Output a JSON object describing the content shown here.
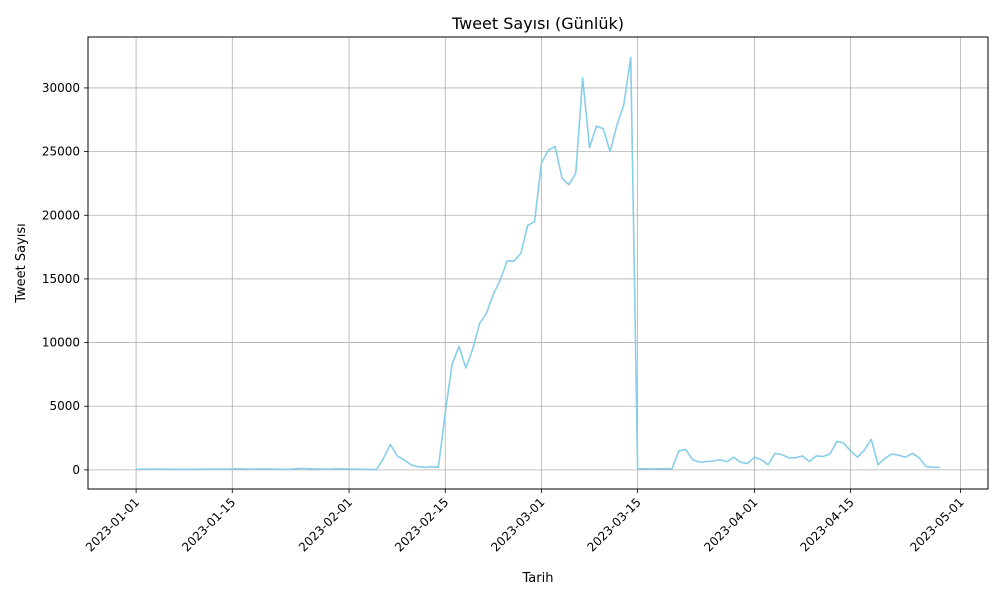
{
  "chart_data": {
    "type": "line",
    "title": "Tweet Sayısı (Günlük)",
    "xlabel": "Tarih",
    "ylabel": "Tweet Sayısı",
    "x_start": "2023-01-01",
    "x_end": "2023-04-28",
    "xlim": [
      "2022-12-25",
      "2023-05-05"
    ],
    "ylim": [
      -1500,
      34000
    ],
    "x_ticks": [
      "2023-01-01",
      "2023-01-15",
      "2023-02-01",
      "2023-02-15",
      "2023-03-01",
      "2023-03-15",
      "2023-04-01",
      "2023-04-15",
      "2023-05-01"
    ],
    "y_ticks": [
      0,
      5000,
      10000,
      15000,
      20000,
      25000,
      30000
    ],
    "grid": true,
    "line_color": "#87ceeb",
    "series": [
      {
        "name": "",
        "values": [
          50,
          60,
          55,
          70,
          60,
          50,
          45,
          40,
          45,
          50,
          60,
          55,
          70,
          60,
          80,
          90,
          70,
          60,
          70,
          80,
          60,
          50,
          40,
          80,
          120,
          100,
          80,
          70,
          60,
          80,
          90,
          70,
          60,
          50,
          40,
          30,
          900,
          2000,
          1100,
          800,
          400,
          250,
          200,
          250,
          200,
          4500,
          8300,
          9700,
          8000,
          9500,
          11500,
          12300,
          13800,
          14900,
          16400,
          16400,
          17000,
          19200,
          19500,
          24100,
          25100,
          25400,
          22900,
          22400,
          23300,
          30800,
          25300,
          27000,
          26800,
          25000,
          27100,
          28700,
          32400,
          100,
          90,
          80,
          90,
          100,
          90,
          1500,
          1600,
          800,
          600,
          650,
          700,
          800,
          650,
          1000,
          600,
          500,
          1000,
          800,
          400,
          1300,
          1200,
          950,
          950,
          1100,
          650,
          1100,
          1050,
          1250,
          2250,
          2100,
          1500,
          1000,
          1550,
          2400,
          400,
          900,
          1250,
          1150,
          1000,
          1300,
          950,
          250,
          200,
          200
        ]
      }
    ]
  }
}
